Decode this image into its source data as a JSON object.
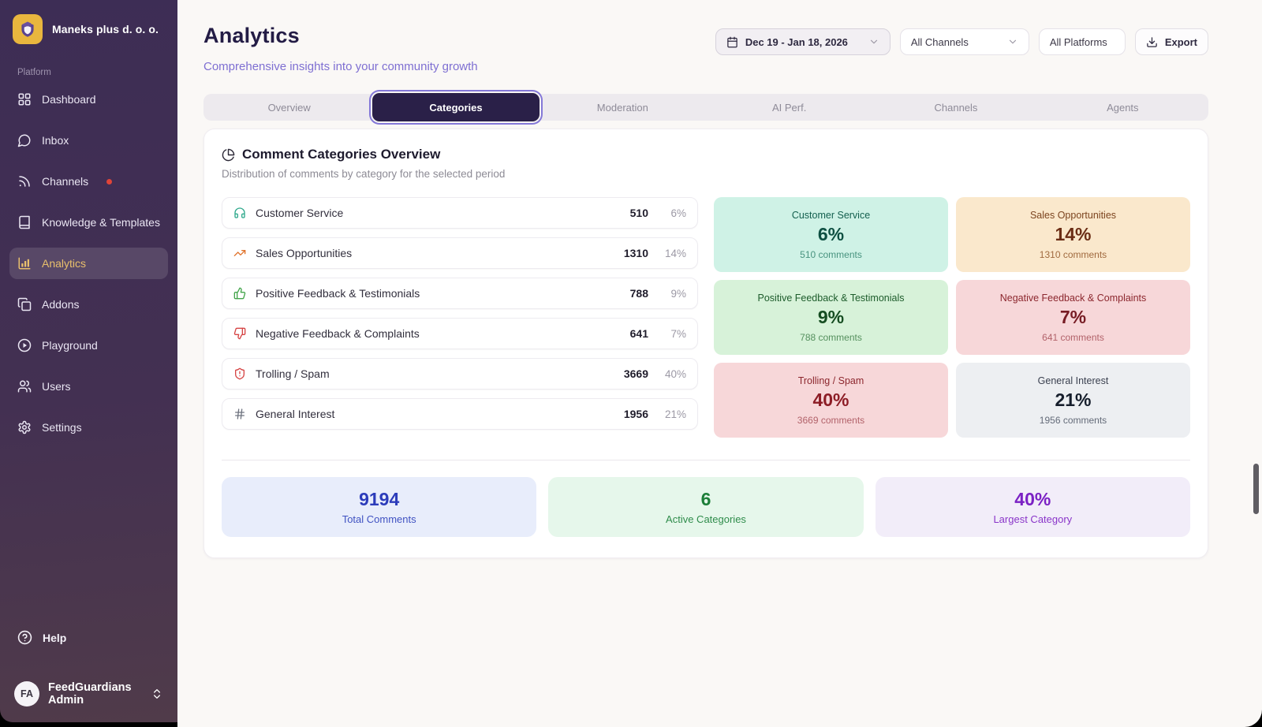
{
  "sidebar": {
    "org_name": "Maneks plus d. o. o.",
    "section_label": "Platform",
    "items": [
      {
        "id": "dashboard",
        "label": "Dashboard",
        "icon": "dashboard-icon"
      },
      {
        "id": "inbox",
        "label": "Inbox",
        "icon": "inbox-icon"
      },
      {
        "id": "channels",
        "label": "Channels",
        "icon": "channels-icon",
        "badge": true
      },
      {
        "id": "knowledge-templates",
        "label": "Knowledge & Templates",
        "icon": "knowledge-icon"
      },
      {
        "id": "analytics",
        "label": "Analytics",
        "icon": "analytics-icon",
        "active": true
      },
      {
        "id": "addons",
        "label": "Addons",
        "icon": "addons-icon"
      },
      {
        "id": "playground",
        "label": "Playground",
        "icon": "playground-icon"
      },
      {
        "id": "users",
        "label": "Users",
        "icon": "users-icon"
      },
      {
        "id": "settings",
        "label": "Settings",
        "icon": "settings-icon"
      }
    ],
    "help_label": "Help",
    "user": {
      "initials": "FA",
      "name": "FeedGuardians Admin"
    },
    "badge_color": "#e04438",
    "active_text_color": "#e9c06c"
  },
  "header": {
    "title": "Analytics",
    "subtitle": "Comprehensive insights into your community growth",
    "date_range": "Dec 19 - Jan 18, 2026",
    "channels_filter": "All Channels",
    "platforms_filter": "All Platforms",
    "export_label": "Export"
  },
  "tabs": [
    {
      "id": "overview",
      "label": "Overview"
    },
    {
      "id": "categories",
      "label": "Categories",
      "active": true
    },
    {
      "id": "moderation",
      "label": "Moderation"
    },
    {
      "id": "ai-perf",
      "label": "AI Perf."
    },
    {
      "id": "channels",
      "label": "Channels"
    },
    {
      "id": "agents",
      "label": "Agents"
    }
  ],
  "overview_card": {
    "title": "Comment Categories Overview",
    "subtitle": "Distribution of comments by category for the selected period",
    "categories": [
      {
        "id": "customer-service",
        "name": "Customer Service",
        "count": "510",
        "pct": "6%",
        "icon": "headphones-icon",
        "icon_color": "#2fa98c"
      },
      {
        "id": "sales-opportunities",
        "name": "Sales Opportunities",
        "count": "1310",
        "pct": "14%",
        "icon": "trending-up-icon",
        "icon_color": "#e0732c"
      },
      {
        "id": "positive-feedback",
        "name": "Positive Feedback & Testimonials",
        "count": "788",
        "pct": "9%",
        "icon": "thumbs-up-icon",
        "icon_color": "#44a54c"
      },
      {
        "id": "negative-feedback",
        "name": "Negative Feedback & Complaints",
        "count": "641",
        "pct": "7%",
        "icon": "thumbs-down-icon",
        "icon_color": "#d64545"
      },
      {
        "id": "trolling-spam",
        "name": "Trolling / Spam",
        "count": "3669",
        "pct": "40%",
        "icon": "shield-alert-icon",
        "icon_color": "#d64545"
      },
      {
        "id": "general-interest",
        "name": "General Interest",
        "count": "1956",
        "pct": "21%",
        "icon": "hash-icon",
        "icon_color": "#6f7480"
      }
    ],
    "tiles": [
      {
        "id": "customer-service",
        "title": "Customer Service",
        "pct": "6%",
        "comments": "510 comments",
        "bg": "#cff2e6",
        "title_color": "#14604f",
        "value_color": "#0d4f41",
        "sub_color": "#48937f"
      },
      {
        "id": "sales-opportunities",
        "title": "Sales Opportunities",
        "pct": "14%",
        "comments": "1310 comments",
        "bg": "#fae8cc",
        "title_color": "#7c441f",
        "value_color": "#6b2d15",
        "sub_color": "#a06a3f"
      },
      {
        "id": "positive-feedback",
        "title": "Positive Feedback & Testimonials",
        "pct": "9%",
        "comments": "788 comments",
        "bg": "#d7f2d9",
        "title_color": "#1d5c2b",
        "value_color": "#154d21",
        "sub_color": "#55905e"
      },
      {
        "id": "negative-feedback",
        "title": "Negative Feedback & Complaints",
        "pct": "7%",
        "comments": "641 comments",
        "bg": "#f7d7d9",
        "title_color": "#8c272e",
        "value_color": "#771c24",
        "sub_color": "#b2626a"
      },
      {
        "id": "trolling-spam",
        "title": "Trolling / Spam",
        "pct": "40%",
        "comments": "3669 comments",
        "bg": "#f7d7d9",
        "title_color": "#8c272e",
        "value_color": "#8d1d26",
        "sub_color": "#b2626a"
      },
      {
        "id": "general-interest",
        "title": "General Interest",
        "pct": "21%",
        "comments": "1956 comments",
        "bg": "#edeff2",
        "title_color": "#3b4150",
        "value_color": "#161e2c",
        "sub_color": "#646b79"
      }
    ],
    "stats": [
      {
        "id": "total-comments",
        "value": "9194",
        "label": "Total Comments",
        "bg": "#e8edfb",
        "value_color": "#2c3cba",
        "label_color": "#4052c2"
      },
      {
        "id": "active-categories",
        "value": "6",
        "label": "Active Categories",
        "bg": "#e6f7eb",
        "value_color": "#1c7e38",
        "label_color": "#2f8c4b"
      },
      {
        "id": "largest-category",
        "value": "40%",
        "label": "Largest Category",
        "bg": "#f2edf9",
        "value_color": "#7b21c4",
        "label_color": "#8a35c9"
      }
    ]
  }
}
